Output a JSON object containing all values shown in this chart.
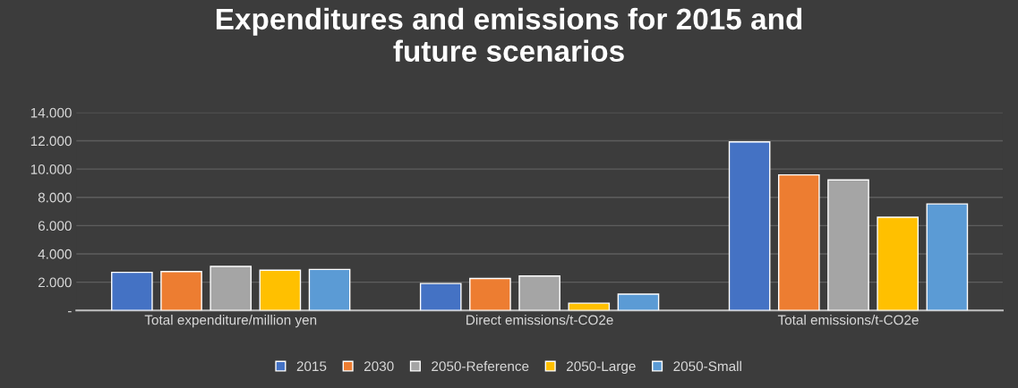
{
  "chart_data": {
    "type": "bar",
    "title": "Expenditures and emissions for 2015 and\nfuture scenarios",
    "categories": [
      "Total expenditure/million yen",
      "Direct emissions/t-CO2e",
      "Total emissions/t-CO2e"
    ],
    "series": [
      {
        "name": "2015",
        "color": "#4472c4",
        "values": [
          2690,
          1900,
          11920
        ]
      },
      {
        "name": "2030",
        "color": "#ed7d31",
        "values": [
          2750,
          2260,
          9590
        ]
      },
      {
        "name": "2050-Reference",
        "color": "#a5a5a5",
        "values": [
          3110,
          2430,
          9230
        ]
      },
      {
        "name": "2050-Large",
        "color": "#ffc000",
        "values": [
          2840,
          510,
          6590
        ]
      },
      {
        "name": "2050-Small",
        "color": "#5b9bd5",
        "values": [
          2900,
          1150,
          7530
        ]
      }
    ],
    "ylim": [
      0,
      14000
    ],
    "yticks": [
      {
        "value": 0,
        "label": "-"
      },
      {
        "value": 2000,
        "label": "2.000"
      },
      {
        "value": 4000,
        "label": "4.000"
      },
      {
        "value": 6000,
        "label": "6.000"
      },
      {
        "value": 8000,
        "label": "8.000"
      },
      {
        "value": 10000,
        "label": "10.000"
      },
      {
        "value": 12000,
        "label": "12.000"
      },
      {
        "value": 14000,
        "label": "14.000"
      }
    ],
    "grid": "y",
    "legend": "bottom"
  }
}
